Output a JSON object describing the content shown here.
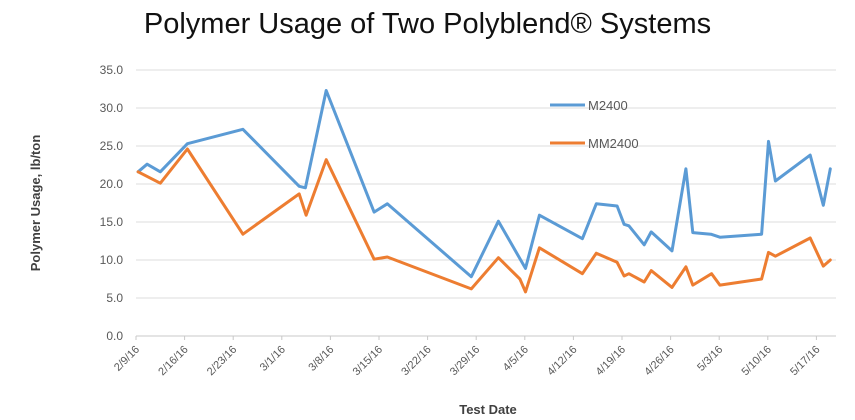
{
  "chart_data": {
    "type": "line",
    "title": "Polymer Usage of Two Polyblend® Systems",
    "xlabel": "Test Date",
    "ylabel": "Polymer Usage, lb/ton",
    "ylim": [
      0,
      35
    ],
    "yticks": [
      "0.0",
      "5.0",
      "10.0",
      "15.0",
      "20.0",
      "25.0",
      "30.0",
      "35.0"
    ],
    "xticks": [
      "2/9/16",
      "2/16/16",
      "2/23/16",
      "3/1/16",
      "3/8/16",
      "3/15/16",
      "3/22/16",
      "3/29/16",
      "4/5/16",
      "4/12/16",
      "4/19/16",
      "4/26/16",
      "5/3/16",
      "5/10/16",
      "5/17/16"
    ],
    "grid": true,
    "legend_position": "upper-right-inside",
    "colors": {
      "M2400": "#5b9bd5",
      "MM2400": "#ed7d31"
    },
    "series": [
      {
        "name": "M2400",
        "points": [
          [
            0.3,
            21.6
          ],
          [
            1.6,
            22.6
          ],
          [
            3.5,
            21.6
          ],
          [
            7.4,
            25.3
          ],
          [
            15.4,
            27.2
          ],
          [
            23.5,
            19.7
          ],
          [
            24.4,
            19.5
          ],
          [
            27.4,
            32.3
          ],
          [
            34.3,
            16.3
          ],
          [
            36.2,
            17.4
          ],
          [
            48.3,
            7.8
          ],
          [
            52.2,
            15.1
          ],
          [
            56.1,
            8.9
          ],
          [
            58.1,
            15.9
          ],
          [
            64.3,
            12.8
          ],
          [
            66.3,
            17.4
          ],
          [
            69.3,
            17.1
          ],
          [
            70.3,
            14.7
          ],
          [
            71.0,
            14.5
          ],
          [
            73.2,
            12.0
          ],
          [
            74.2,
            13.7
          ],
          [
            77.2,
            11.2
          ],
          [
            79.2,
            22.0
          ],
          [
            80.2,
            13.6
          ],
          [
            82.8,
            13.4
          ],
          [
            84.1,
            13.0
          ],
          [
            90.1,
            13.4
          ],
          [
            91.1,
            25.6
          ],
          [
            92.1,
            20.4
          ],
          [
            97.1,
            23.8
          ],
          [
            99.0,
            17.2
          ],
          [
            100.0,
            22.0
          ]
        ]
      },
      {
        "name": "MM2400",
        "points": [
          [
            0.3,
            21.6
          ],
          [
            3.5,
            20.1
          ],
          [
            7.4,
            24.6
          ],
          [
            15.4,
            13.4
          ],
          [
            23.5,
            18.7
          ],
          [
            24.5,
            15.9
          ],
          [
            27.4,
            23.2
          ],
          [
            34.3,
            10.1
          ],
          [
            36.2,
            10.4
          ],
          [
            48.3,
            6.2
          ],
          [
            52.2,
            10.3
          ],
          [
            55.3,
            7.5
          ],
          [
            56.1,
            5.8
          ],
          [
            58.1,
            11.6
          ],
          [
            64.3,
            8.2
          ],
          [
            66.3,
            10.9
          ],
          [
            69.3,
            9.7
          ],
          [
            70.3,
            7.9
          ],
          [
            71.0,
            8.2
          ],
          [
            73.2,
            7.1
          ],
          [
            74.2,
            8.6
          ],
          [
            77.2,
            6.4
          ],
          [
            79.2,
            9.1
          ],
          [
            80.2,
            6.7
          ],
          [
            82.9,
            8.2
          ],
          [
            84.1,
            6.7
          ],
          [
            90.1,
            7.5
          ],
          [
            91.1,
            11.0
          ],
          [
            92.1,
            10.5
          ],
          [
            97.1,
            12.9
          ],
          [
            99.0,
            9.2
          ],
          [
            100.0,
            10.0
          ]
        ]
      }
    ]
  },
  "legend": {
    "items": [
      {
        "label": "M2400",
        "color": "#5b9bd5"
      },
      {
        "label": "MM2400",
        "color": "#ed7d31"
      }
    ]
  }
}
